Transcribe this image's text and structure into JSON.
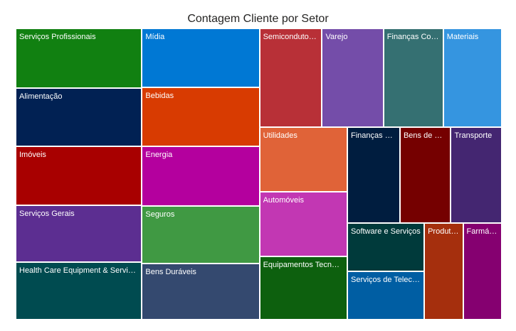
{
  "chart_data": {
    "type": "treemap",
    "title": "Contagem Cliente por Setor",
    "items": [
      {
        "label": "Serviços Profissionais",
        "value": 13.4,
        "color": "#118011"
      },
      {
        "label": "Alimentação",
        "value": 13.2,
        "color": "#012153"
      },
      {
        "label": "Imóveis",
        "value": 13.2,
        "color": "#A80000"
      },
      {
        "label": "Serviços Gerais",
        "value": 12.9,
        "color": "#5C2E91"
      },
      {
        "label": "Health Care Equipment & Services",
        "value": 12.9,
        "color": "#004B50"
      },
      {
        "label": "Mídia",
        "value": 12.4,
        "color": "#0078D4"
      },
      {
        "label": "Bebidas",
        "value": 12.4,
        "color": "#D83B01"
      },
      {
        "label": "Energia",
        "value": 12.4,
        "color": "#B4009E"
      },
      {
        "label": "Seguros",
        "value": 12.1,
        "color": "#409943"
      },
      {
        "label": "Bens Duráveis",
        "value": 11.8,
        "color": "#34496F"
      },
      {
        "label": "Semicondutores",
        "value": 11.0,
        "color": "#B83037"
      },
      {
        "label": "Varejo",
        "value": 10.8,
        "color": "#744DA9"
      },
      {
        "label": "Finanças Corporativas",
        "value": 10.5,
        "color": "#357072"
      },
      {
        "label": "Materiais",
        "value": 10.3,
        "color": "#3595E0"
      },
      {
        "label": "Utilidades",
        "value": 10.2,
        "color": "#E06338"
      },
      {
        "label": "Automóveis",
        "value": 10.1,
        "color": "#C237B3"
      },
      {
        "label": "Equipamentos Tecnológicos",
        "value": 9.9,
        "color": "#0D600E"
      },
      {
        "label": "Finanças Pessoais",
        "value": 9.0,
        "color": "#001D3F"
      },
      {
        "label": "Bens de Consumo",
        "value": 8.7,
        "color": "#750000"
      },
      {
        "label": "Transporte",
        "value": 8.7,
        "color": "#442671"
      },
      {
        "label": "Software e Serviços",
        "value": 6.7,
        "color": "#003A3B"
      },
      {
        "label": "Serviços de Telecomunicações",
        "value": 6.6,
        "color": "#005EA3"
      },
      {
        "label": "Produtos Químicos",
        "value": 6.7,
        "color": "#A52F0D"
      },
      {
        "label": "Farmácia",
        "value": 6.7,
        "color": "#850070"
      }
    ]
  }
}
